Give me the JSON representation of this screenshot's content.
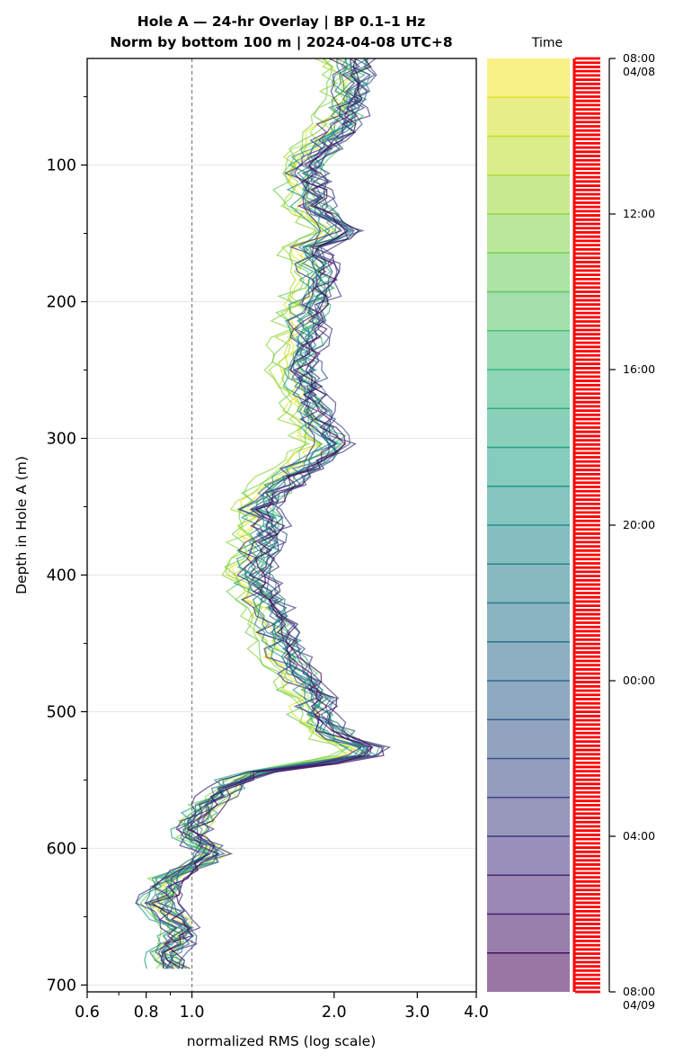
{
  "chart_data": {
    "type": "line",
    "title_line1": "Hole A — 24-hr Overlay  |  BP 0.1–1 Hz",
    "title_line2": "Norm by bottom 100 m  |  2024-04-08 UTC+8",
    "xlabel": "normalized RMS  (log scale)",
    "ylabel": "Depth in Hole A (m)",
    "x_scale": "log",
    "xlim": [
      0.6,
      4.0
    ],
    "ylim": [
      705,
      22
    ],
    "x_tick_labels": [
      "0.6",
      "0.8",
      "1.0",
      "2.0",
      "3.0",
      "4.0"
    ],
    "x_ticks": [
      0.6,
      0.8,
      1.0,
      2.0,
      3.0,
      4.0
    ],
    "y_ticks": [
      100,
      200,
      300,
      400,
      500,
      600,
      700
    ],
    "y_tick_labels": [
      "100",
      "200",
      "300",
      "400",
      "500",
      "600",
      "700"
    ],
    "reference_line_x": 1.0,
    "grid": "horizontal",
    "colormap": "viridis",
    "num_traces": 24,
    "profile_depths": [
      22,
      50,
      80,
      100,
      130,
      150,
      160,
      185,
      200,
      250,
      290,
      305,
      330,
      350,
      365,
      400,
      430,
      460,
      490,
      510,
      520,
      530,
      545,
      570,
      590,
      605,
      620,
      640,
      660,
      675,
      690
    ],
    "profile_median": [
      2.2,
      2.2,
      2.0,
      1.75,
      1.8,
      2.1,
      1.8,
      1.9,
      1.8,
      1.7,
      1.85,
      2.0,
      1.6,
      1.4,
      1.45,
      1.35,
      1.5,
      1.6,
      1.85,
      1.9,
      2.1,
      2.5,
      1.3,
      1.05,
      0.98,
      1.1,
      0.9,
      0.85,
      0.95,
      0.88,
      0.9
    ],
    "colorbar": {
      "title": "Time",
      "tick_labels": [
        "08:00\n04/08",
        "12:00",
        "16:00",
        "20:00",
        "00:00",
        "04:00",
        "08:00\n04/09"
      ],
      "ticks_hours": [
        0,
        4,
        8,
        12,
        16,
        20,
        24
      ],
      "range_hours": [
        0,
        24
      ],
      "marker_color": "#ff0000"
    }
  }
}
